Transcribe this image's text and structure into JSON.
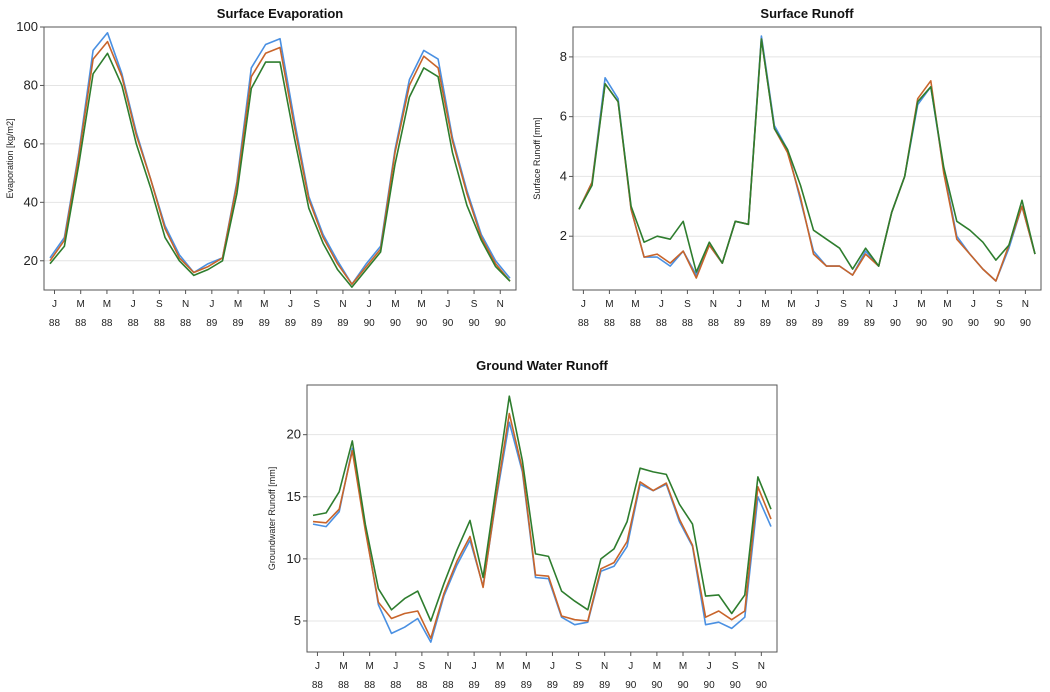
{
  "colors": {
    "series_blue": "#4a90e2",
    "series_orange": "#c8642a",
    "series_green": "#2e7d2e"
  },
  "chart_data": [
    {
      "type": "line",
      "title": "Surface Evaporation",
      "xlabel": "",
      "ylabel": "Evaporation [kg/m2]",
      "ylim": [
        10,
        100
      ],
      "yticks": [
        20,
        40,
        60,
        80,
        100
      ],
      "grid": true,
      "x_labels": [
        [
          "J",
          "88"
        ],
        [
          "M",
          "88"
        ],
        [
          "M",
          "88"
        ],
        [
          "J",
          "88"
        ],
        [
          "S",
          "88"
        ],
        [
          "N",
          "88"
        ],
        [
          "J",
          "89"
        ],
        [
          "M",
          "89"
        ],
        [
          "M",
          "89"
        ],
        [
          "J",
          "89"
        ],
        [
          "S",
          "89"
        ],
        [
          "N",
          "89"
        ],
        [
          "J",
          "90"
        ],
        [
          "M",
          "90"
        ],
        [
          "M",
          "90"
        ],
        [
          "J",
          "90"
        ],
        [
          "S",
          "90"
        ],
        [
          "N",
          "90"
        ]
      ],
      "series": [
        {
          "color": "#4a90e2",
          "values": [
            21,
            28,
            57,
            92,
            98,
            84,
            64,
            48,
            32,
            22,
            16,
            19,
            21,
            47,
            86,
            94,
            96,
            68,
            42,
            29,
            20,
            12,
            19,
            25,
            58,
            82,
            92,
            89,
            62,
            44,
            29,
            20,
            14
          ]
        },
        {
          "color": "#c8642a",
          "values": [
            20,
            27,
            56,
            89,
            95,
            83,
            63,
            48,
            31,
            21,
            16,
            18,
            21,
            46,
            83,
            91,
            93,
            66,
            41,
            28,
            19,
            12,
            18,
            24,
            57,
            80,
            90,
            86,
            61,
            43,
            28,
            19,
            13
          ]
        },
        {
          "color": "#2e7d2e",
          "values": [
            19,
            25,
            53,
            84,
            91,
            80,
            60,
            45,
            28,
            20,
            15,
            17,
            20,
            43,
            79,
            88,
            88,
            62,
            38,
            26,
            17,
            11,
            17,
            23,
            53,
            76,
            86,
            83,
            57,
            39,
            27,
            18,
            13
          ]
        }
      ]
    },
    {
      "type": "line",
      "title": "Surface Runoff",
      "xlabel": "",
      "ylabel": "Surface Runoff [mm]",
      "ylim": [
        0.2,
        9
      ],
      "yticks": [
        2,
        4,
        6,
        8
      ],
      "grid": true,
      "x_labels": [
        [
          "J",
          "88"
        ],
        [
          "M",
          "88"
        ],
        [
          "M",
          "88"
        ],
        [
          "J",
          "88"
        ],
        [
          "S",
          "88"
        ],
        [
          "N",
          "88"
        ],
        [
          "J",
          "89"
        ],
        [
          "M",
          "89"
        ],
        [
          "M",
          "89"
        ],
        [
          "J",
          "89"
        ],
        [
          "S",
          "89"
        ],
        [
          "N",
          "89"
        ],
        [
          "J",
          "90"
        ],
        [
          "M",
          "90"
        ],
        [
          "M",
          "90"
        ],
        [
          "J",
          "90"
        ],
        [
          "S",
          "90"
        ],
        [
          "N",
          "90"
        ]
      ],
      "series": [
        {
          "color": "#4a90e2",
          "values": [
            2.9,
            3.8,
            7.3,
            6.6,
            2.9,
            1.3,
            1.3,
            1.0,
            1.5,
            0.7,
            1.7,
            1.1,
            2.5,
            2.4,
            8.7,
            5.7,
            4.9,
            3.2,
            1.5,
            1.0,
            1.0,
            0.7,
            1.5,
            1.0,
            2.8,
            4.0,
            6.4,
            7.0,
            4.2,
            2.0,
            1.4,
            0.9,
            0.5,
            1.6,
            3.0,
            1.4
          ]
        },
        {
          "color": "#c8642a",
          "values": [
            2.9,
            3.8,
            7.1,
            6.5,
            2.9,
            1.3,
            1.4,
            1.1,
            1.5,
            0.6,
            1.7,
            1.1,
            2.5,
            2.4,
            8.6,
            5.6,
            4.8,
            3.3,
            1.4,
            1.0,
            1.0,
            0.7,
            1.4,
            1.0,
            2.8,
            4.0,
            6.6,
            7.2,
            4.1,
            1.9,
            1.4,
            0.9,
            0.5,
            1.7,
            3.0,
            1.4
          ]
        },
        {
          "color": "#2e7d2e",
          "values": [
            2.9,
            3.7,
            7.1,
            6.5,
            3.0,
            1.8,
            2.0,
            1.9,
            2.5,
            0.8,
            1.8,
            1.1,
            2.5,
            2.4,
            8.6,
            5.6,
            4.9,
            3.7,
            2.2,
            1.9,
            1.6,
            0.9,
            1.6,
            1.0,
            2.8,
            4.0,
            6.5,
            7.0,
            4.3,
            2.5,
            2.2,
            1.8,
            1.2,
            1.7,
            3.2,
            1.4
          ]
        }
      ]
    },
    {
      "type": "line",
      "title": "Ground Water Runoff",
      "xlabel": "",
      "ylabel": "Groundwater Runoff [mm]",
      "ylim": [
        2.5,
        24
      ],
      "yticks": [
        5,
        10,
        15,
        20
      ],
      "grid": true,
      "x_labels": [
        [
          "J",
          "88"
        ],
        [
          "M",
          "88"
        ],
        [
          "M",
          "88"
        ],
        [
          "J",
          "88"
        ],
        [
          "S",
          "88"
        ],
        [
          "N",
          "88"
        ],
        [
          "J",
          "89"
        ],
        [
          "M",
          "89"
        ],
        [
          "M",
          "89"
        ],
        [
          "J",
          "89"
        ],
        [
          "S",
          "89"
        ],
        [
          "N",
          "89"
        ],
        [
          "J",
          "90"
        ],
        [
          "M",
          "90"
        ],
        [
          "M",
          "90"
        ],
        [
          "J",
          "90"
        ],
        [
          "S",
          "90"
        ],
        [
          "N",
          "90"
        ]
      ],
      "series": [
        {
          "color": "#4a90e2",
          "values": [
            12.8,
            12.6,
            13.8,
            18.9,
            12.5,
            6.3,
            4.0,
            4.5,
            5.2,
            3.3,
            7.0,
            9.5,
            11.5,
            7.8,
            14.8,
            21.0,
            17.0,
            8.5,
            8.4,
            5.3,
            4.7,
            4.9,
            9.0,
            9.4,
            11.0,
            16.0,
            15.5,
            16.0,
            13.0,
            11.0,
            4.7,
            4.9,
            4.4,
            5.3,
            15.0,
            12.6
          ]
        },
        {
          "color": "#c8642a",
          "values": [
            13.0,
            12.9,
            14.0,
            18.7,
            12.3,
            6.5,
            5.2,
            5.6,
            5.8,
            3.6,
            7.2,
            9.8,
            11.8,
            7.7,
            15.0,
            21.7,
            17.2,
            8.7,
            8.6,
            5.4,
            5.1,
            5.0,
            9.2,
            9.7,
            11.4,
            16.2,
            15.5,
            16.1,
            13.2,
            11.1,
            5.3,
            5.8,
            5.1,
            5.8,
            15.8,
            13.2
          ]
        },
        {
          "color": "#2e7d2e",
          "values": [
            13.5,
            13.7,
            15.4,
            19.5,
            12.8,
            7.6,
            5.9,
            6.8,
            7.4,
            5.0,
            8.0,
            10.7,
            13.1,
            8.5,
            15.8,
            23.1,
            17.9,
            10.4,
            10.2,
            7.4,
            6.6,
            5.9,
            10.0,
            10.8,
            13.0,
            17.3,
            17.0,
            16.8,
            14.4,
            12.8,
            7.0,
            7.1,
            5.6,
            7.1,
            16.6,
            14.0
          ]
        }
      ]
    }
  ]
}
